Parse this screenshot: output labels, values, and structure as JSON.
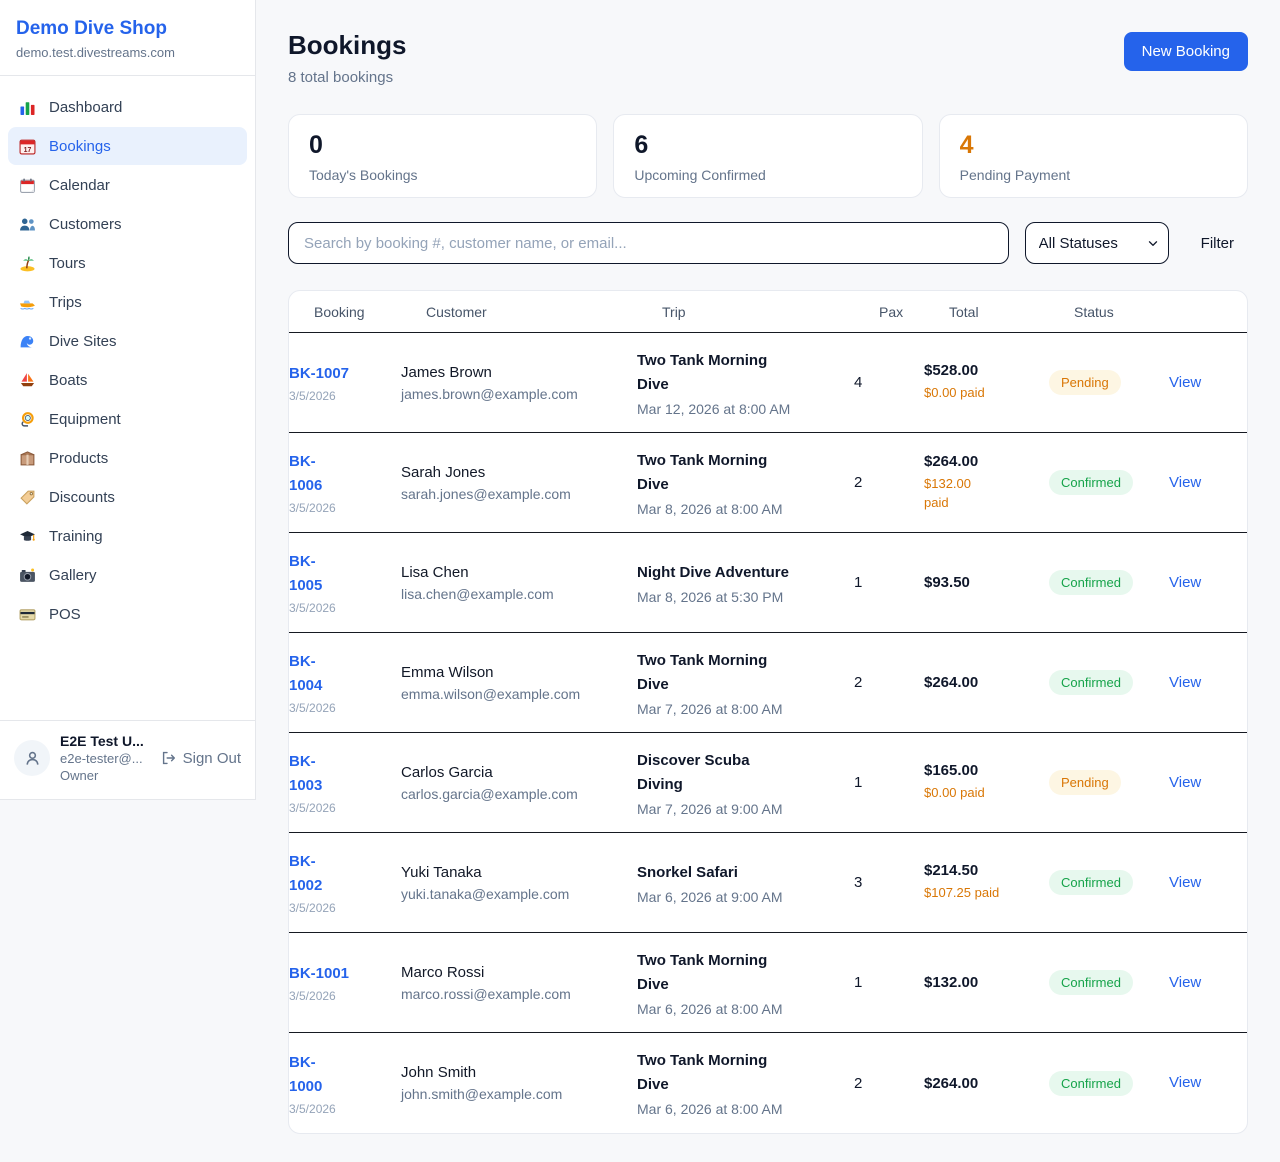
{
  "colors": {
    "accent_blue": "#2563eb",
    "pending_orange": "#d97706",
    "confirmed_green": "#16a34a",
    "dark_text": "#0f172a"
  },
  "sidebar": {
    "brand": {
      "name": "Demo Dive Shop",
      "domain": "demo.test.divestreams.com"
    },
    "items": [
      {
        "key": "dashboard",
        "label": "Dashboard",
        "icon": "bar-chart",
        "active": false
      },
      {
        "key": "bookings",
        "label": "Bookings",
        "icon": "calendar-date",
        "active": true
      },
      {
        "key": "calendar",
        "label": "Calendar",
        "icon": "tear-off-calendar",
        "active": false
      },
      {
        "key": "customers",
        "label": "Customers",
        "icon": "users",
        "active": false
      },
      {
        "key": "tours",
        "label": "Tours",
        "icon": "desert-island",
        "active": false
      },
      {
        "key": "trips",
        "label": "Trips",
        "icon": "speedboat",
        "active": false
      },
      {
        "key": "dive-sites",
        "label": "Dive Sites",
        "icon": "wave",
        "active": false
      },
      {
        "key": "boats",
        "label": "Boats",
        "icon": "sailboat",
        "active": false
      },
      {
        "key": "equipment",
        "label": "Equipment",
        "icon": "diving-mask",
        "active": false
      },
      {
        "key": "products",
        "label": "Products",
        "icon": "package",
        "active": false
      },
      {
        "key": "discounts",
        "label": "Discounts",
        "icon": "label-tag",
        "active": false
      },
      {
        "key": "training",
        "label": "Training",
        "icon": "graduation-cap",
        "active": false
      },
      {
        "key": "gallery",
        "label": "Gallery",
        "icon": "camera-flash",
        "active": false
      },
      {
        "key": "pos",
        "label": "POS",
        "icon": "credit-card",
        "active": false
      }
    ],
    "user": {
      "name": "E2E Test U...",
      "email": "e2e-tester@...",
      "role": "Owner",
      "sign_out_label": "Sign Out"
    }
  },
  "header": {
    "title": "Bookings",
    "subtitle": "8 total bookings",
    "new_booking_label": "New Booking"
  },
  "stats": [
    {
      "value": "0",
      "label": "Today's Bookings",
      "value_color": "#0f172a"
    },
    {
      "value": "6",
      "label": "Upcoming Confirmed",
      "value_color": "#0f172a"
    },
    {
      "value": "4",
      "label": "Pending Payment",
      "value_color": "#d97706"
    }
  ],
  "filters": {
    "search_placeholder": "Search by booking #, customer name, or email...",
    "status_selected": "All Statuses",
    "filter_label": "Filter"
  },
  "table": {
    "columns": [
      "Booking",
      "Customer",
      "Trip",
      "Pax",
      "Total",
      "Status"
    ],
    "view_label": "View",
    "rows": [
      {
        "id": "BK-1007",
        "date": "3/5/2026",
        "customer": "James Brown",
        "email": "james.brown@example.com",
        "trip": "Two Tank Morning\nDive",
        "trip_time": "Mar 12, 2026 at 8:00 AM",
        "pax": "4",
        "total": "$528.00",
        "paid": "$0.00 paid",
        "status": "Pending"
      },
      {
        "id": "BK-\n1006",
        "date": "3/5/2026",
        "customer": "Sarah Jones",
        "email": "sarah.jones@example.com",
        "trip": "Two Tank Morning\nDive",
        "trip_time": "Mar 8, 2026 at 8:00 AM",
        "pax": "2",
        "total": "$264.00",
        "paid": "$132.00\npaid",
        "status": "Confirmed"
      },
      {
        "id": "BK-\n1005",
        "date": "3/5/2026",
        "customer": "Lisa Chen",
        "email": "lisa.chen@example.com",
        "trip": "Night Dive Adventure",
        "trip_time": "Mar 8, 2026 at 5:30 PM",
        "pax": "1",
        "total": "$93.50",
        "paid": "",
        "status": "Confirmed"
      },
      {
        "id": "BK-\n1004",
        "date": "3/5/2026",
        "customer": "Emma Wilson",
        "email": "emma.wilson@example.com",
        "trip": "Two Tank Morning\nDive",
        "trip_time": "Mar 7, 2026 at 8:00 AM",
        "pax": "2",
        "total": "$264.00",
        "paid": "",
        "status": "Confirmed"
      },
      {
        "id": "BK-\n1003",
        "date": "3/5/2026",
        "customer": "Carlos Garcia",
        "email": "carlos.garcia@example.com",
        "trip": "Discover Scuba\nDiving",
        "trip_time": "Mar 7, 2026 at 9:00 AM",
        "pax": "1",
        "total": "$165.00",
        "paid": "$0.00 paid",
        "status": "Pending"
      },
      {
        "id": "BK-\n1002",
        "date": "3/5/2026",
        "customer": "Yuki Tanaka",
        "email": "yuki.tanaka@example.com",
        "trip": "Snorkel Safari",
        "trip_time": "Mar 6, 2026 at 9:00 AM",
        "pax": "3",
        "total": "$214.50",
        "paid": "$107.25 paid",
        "status": "Confirmed"
      },
      {
        "id": "BK-1001",
        "date": "3/5/2026",
        "customer": "Marco Rossi",
        "email": "marco.rossi@example.com",
        "trip": "Two Tank Morning\nDive",
        "trip_time": "Mar 6, 2026 at 8:00 AM",
        "pax": "1",
        "total": "$132.00",
        "paid": "",
        "status": "Confirmed"
      },
      {
        "id": "BK-\n1000",
        "date": "3/5/2026",
        "customer": "John Smith",
        "email": "john.smith@example.com",
        "trip": "Two Tank Morning\nDive",
        "trip_time": "Mar 6, 2026 at 8:00 AM",
        "pax": "2",
        "total": "$264.00",
        "paid": "",
        "status": "Confirmed"
      }
    ]
  }
}
